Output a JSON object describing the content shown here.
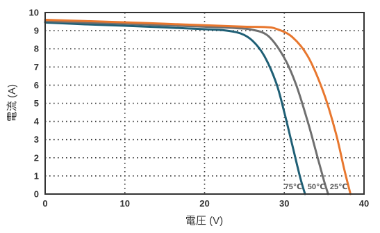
{
  "chart_data": {
    "type": "line",
    "title": "",
    "xlabel": "電圧 (V)",
    "ylabel": "電流 (A)",
    "xlim": [
      0,
      40
    ],
    "ylim": [
      0,
      10
    ],
    "xticks": [
      "0",
      "10",
      "20",
      "30",
      "40"
    ],
    "yticks": [
      "0",
      "1",
      "2",
      "3",
      "4",
      "5",
      "6",
      "7",
      "8",
      "9",
      "10"
    ],
    "grid": true,
    "series": [
      {
        "name": "75℃",
        "color": "#1f5f75",
        "x": [
          0,
          5,
          10,
          15,
          20,
          22.5,
          24.5,
          26,
          27.5,
          29,
          30,
          31,
          32,
          32.6
        ],
        "y": [
          9.45,
          9.35,
          9.27,
          9.18,
          9.08,
          9.02,
          8.85,
          8.45,
          7.6,
          6.1,
          4.5,
          2.7,
          0.9,
          0
        ]
      },
      {
        "name": "50℃",
        "color": "#6f6f6f",
        "x": [
          0,
          5,
          10,
          15,
          20,
          24,
          26,
          28,
          30,
          31.5,
          33,
          34,
          35,
          35.5
        ],
        "y": [
          9.52,
          9.45,
          9.38,
          9.3,
          9.22,
          9.14,
          9.05,
          8.7,
          7.5,
          6.0,
          3.9,
          2.3,
          0.7,
          0
        ]
      },
      {
        "name": "25℃",
        "color": "#e8772e",
        "x": [
          0,
          5,
          10,
          15,
          20,
          25,
          27.5,
          29,
          31,
          33,
          35,
          36.5,
          37.5,
          38.3
        ],
        "y": [
          9.6,
          9.53,
          9.46,
          9.38,
          9.3,
          9.22,
          9.2,
          9.1,
          8.65,
          7.55,
          5.5,
          3.3,
          1.4,
          0
        ]
      }
    ]
  }
}
